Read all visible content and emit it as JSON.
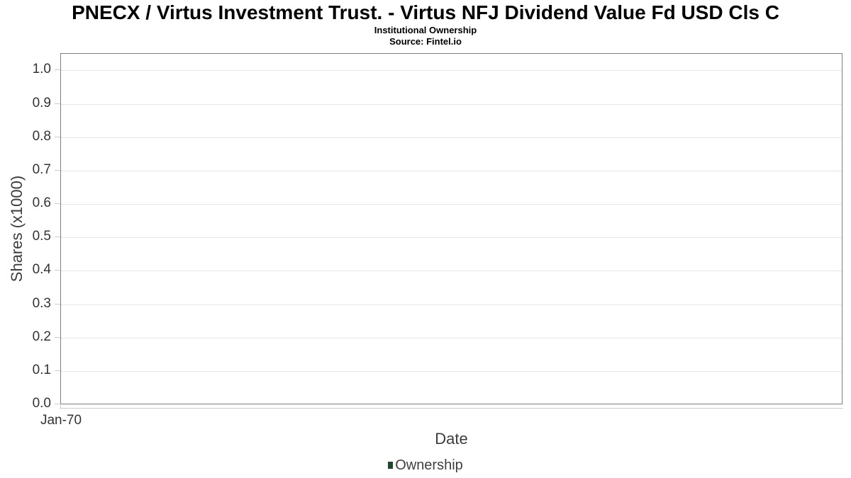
{
  "header": {
    "title": "PNECX / Virtus Investment Trust. - Virtus NFJ Dividend Value Fd USD Cls C",
    "subtitle": "Institutional Ownership",
    "source": "Source: Fintel.io"
  },
  "chart_data": {
    "type": "line",
    "title": "PNECX / Virtus Investment Trust. - Virtus NFJ Dividend Value Fd USD Cls C",
    "subtitle": "Institutional Ownership",
    "source": "Source: Fintel.io",
    "xlabel": "Date",
    "ylabel": "Shares (x1000)",
    "ylim": [
      0.0,
      1.0
    ],
    "yticks": [
      0.0,
      0.1,
      0.2,
      0.3,
      0.4,
      0.5,
      0.6,
      0.7,
      0.8,
      0.9,
      1.0
    ],
    "ytick_labels": [
      "0.0",
      "0.1",
      "0.2",
      "0.3",
      "0.4",
      "0.5",
      "0.6",
      "0.7",
      "0.8",
      "0.9",
      "1.0"
    ],
    "xtick_labels": [
      "Jan-70"
    ],
    "grid": "horizontal",
    "legend_position": "bottom",
    "series": [
      {
        "name": "Ownership",
        "color": "#1e4929",
        "x": [],
        "values": []
      }
    ]
  },
  "colors": {
    "background": "#ffffff",
    "title_text": "#000000",
    "axis_text": "#333333",
    "axis_title_text": "#3c3c3c",
    "plot_border": "#7f7f7f",
    "gridline": "#e6e6e6",
    "tick": "#cccccc",
    "legend_marker": "#1e4929"
  }
}
